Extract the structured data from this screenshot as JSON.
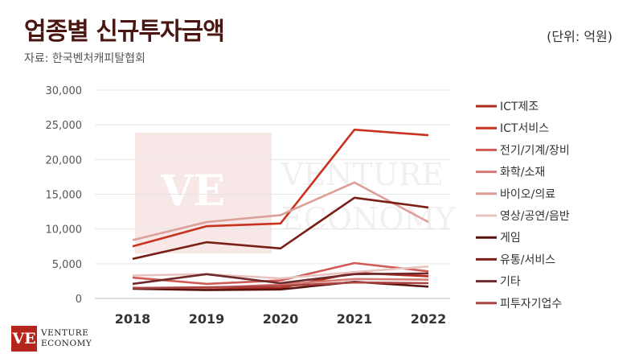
{
  "header": {
    "title": "업종별 신규투자금액",
    "unit": "(단위: 억원)",
    "source": "자료: 한국벤처캐피탈협회"
  },
  "logo": {
    "mark": "VE",
    "line1": "VENTURE",
    "line2": "ECONOMY"
  },
  "chart_data": {
    "type": "line",
    "title": "업종별 신규투자금액",
    "xlabel": "",
    "ylabel": "",
    "categories": [
      "2018",
      "2019",
      "2020",
      "2021",
      "2022"
    ],
    "ylim": [
      0,
      30000
    ],
    "yticks": [
      0,
      5000,
      10000,
      15000,
      20000,
      25000,
      30000
    ],
    "ytick_labels": [
      "0",
      "5,000",
      "10,000",
      "15,000",
      "20,000",
      "25,000",
      "30,000"
    ],
    "grid": true,
    "legend_position": "right",
    "series": [
      {
        "name": "ICT제조",
        "color": "#b22a1c",
        "values": [
          1500,
          1400,
          1500,
          3700,
          3200
        ]
      },
      {
        "name": "ICT서비스",
        "color": "#c8321f",
        "values": [
          7500,
          10400,
          10800,
          24300,
          23500
        ]
      },
      {
        "name": "전기/기계/장비",
        "color": "#cf5a56",
        "values": [
          3000,
          2100,
          2600,
          5100,
          3900
        ]
      },
      {
        "name": "화학/소재",
        "color": "#d47b75",
        "values": [
          1500,
          1500,
          2000,
          2800,
          2700
        ]
      },
      {
        "name": "바이오/의료",
        "color": "#dd9f99",
        "values": [
          8400,
          11000,
          12000,
          16700,
          11000
        ]
      },
      {
        "name": "영상/공연/음반",
        "color": "#e8c3bf",
        "values": [
          3300,
          3500,
          2900,
          3800,
          4600
        ]
      },
      {
        "name": "게임",
        "color": "#5a1410",
        "values": [
          1400,
          1200,
          1300,
          2400,
          1700
        ]
      },
      {
        "name": "유통/서비스",
        "color": "#7a1f16",
        "values": [
          5700,
          8100,
          7200,
          14500,
          13100
        ]
      },
      {
        "name": "기타",
        "color": "#6e2a2a",
        "values": [
          2100,
          3500,
          2200,
          3500,
          3600
        ]
      },
      {
        "name": "피투자기업수",
        "color": "#a94442",
        "values": [
          1500,
          1600,
          1800,
          2300,
          2200
        ]
      }
    ]
  }
}
